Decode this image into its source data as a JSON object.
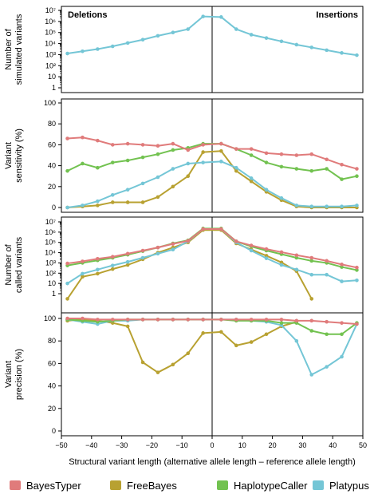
{
  "chart_data": {
    "type": "line",
    "x": [
      -48,
      -43,
      -38,
      -33,
      -28,
      -23,
      -18,
      -13,
      -8,
      -3,
      3,
      8,
      13,
      18,
      23,
      28,
      33,
      38,
      43,
      48
    ],
    "xlim": [
      -50,
      50
    ],
    "xticks": [
      -50,
      -40,
      -30,
      -20,
      -10,
      0,
      10,
      20,
      30,
      40,
      50
    ],
    "xlabel": "Structural variant length (alternative allele length – reference allele length)",
    "left_label": "Deletions",
    "right_label": "Insertions",
    "legend": [
      {
        "name": "BayesTyper",
        "color": "#e07b7b"
      },
      {
        "name": "FreeBayes",
        "color": "#b8a131"
      },
      {
        "name": "HaplotypeCaller",
        "color": "#72c250"
      },
      {
        "name": "Platypus",
        "color": "#74c6d6"
      }
    ],
    "panels": [
      {
        "id": "simulated",
        "ylabel": [
          "Number of",
          "simulated variants"
        ],
        "scale": "log",
        "ylim": [
          0,
          7
        ],
        "ytick_labels": [
          "1",
          "10",
          "10²",
          "10³",
          "10⁴",
          "10⁵",
          "10⁶",
          "10⁷"
        ],
        "show_corner_labels": true,
        "series": [
          {
            "key": "simulated",
            "color": "#74c6d6",
            "values": [
              3.1,
              3.3,
              3.5,
              3.75,
              4.05,
              4.35,
              4.7,
              5.0,
              5.3,
              6.45,
              6.4,
              5.3,
              4.8,
              4.5,
              4.2,
              3.9,
              3.65,
              3.4,
              3.15,
              2.95
            ]
          }
        ]
      },
      {
        "id": "sensitivity",
        "ylabel": [
          "Variant",
          "sensitivity (%)"
        ],
        "scale": "linear",
        "ylim": [
          0,
          100
        ],
        "yticks": [
          0,
          20,
          40,
          60,
          80,
          100
        ],
        "ytick_labels": [
          "0",
          "20",
          "40",
          "60",
          "80",
          "100"
        ],
        "series": [
          {
            "name": "BayesTyper",
            "values": [
              66,
              67,
              64,
              60,
              61,
              60,
              59,
              61,
              55,
              60,
              61,
              56,
              56,
              52,
              51,
              50,
              51,
              46,
              41,
              37
            ]
          },
          {
            "name": "FreeBayes",
            "values": [
              0,
              1,
              2,
              5,
              5,
              5,
              10,
              20,
              30,
              53,
              54,
              35,
              25,
              15,
              7,
              1,
              0,
              0,
              0,
              0
            ]
          },
          {
            "name": "HaplotypeCaller",
            "values": [
              35,
              42,
              38,
              43,
              45,
              48,
              51,
              55,
              57,
              61,
              61,
              56,
              50,
              43,
              39,
              37,
              35,
              37,
              27,
              30
            ]
          },
          {
            "name": "Platypus",
            "values": [
              0,
              2,
              6,
              12,
              17,
              23,
              29,
              37,
              42,
              43,
              44,
              38,
              28,
              17,
              9,
              2,
              1,
              1,
              1,
              2
            ]
          }
        ]
      },
      {
        "id": "called",
        "ylabel": [
          "Number of",
          "called variants"
        ],
        "scale": "log",
        "ylim": [
          0,
          7
        ],
        "ytick_labels": [
          "1",
          "10",
          "10²",
          "10³",
          "10⁴",
          "10⁵",
          "10⁶",
          "10⁷"
        ],
        "series": [
          {
            "name": "BayesTyper",
            "values": [
              2.95,
              3.15,
              3.4,
              3.6,
              3.9,
              4.2,
              4.5,
              4.85,
              5.15,
              6.3,
              6.3,
              5.1,
              4.7,
              4.35,
              4.05,
              3.75,
              3.5,
              3.2,
              2.85,
              2.55
            ]
          },
          {
            "name": "FreeBayes",
            "values": [
              -0.5,
              1.65,
              1.95,
              2.4,
              2.8,
              3.35,
              4.0,
              4.5,
              5.0,
              6.2,
              6.2,
              4.9,
              4.3,
              3.7,
              3.05,
              2.2,
              -0.5,
              null,
              null,
              null
            ]
          },
          {
            "name": "HaplotypeCaller",
            "values": [
              2.75,
              3.0,
              3.25,
              3.5,
              3.8,
              4.15,
              4.5,
              4.9,
              5.2,
              6.35,
              6.35,
              5.1,
              4.6,
              4.2,
              3.85,
              3.5,
              3.2,
              3.0,
              2.6,
              2.3
            ]
          },
          {
            "name": "Platypus",
            "values": [
              1.0,
              1.95,
              2.35,
              2.75,
              3.1,
              3.5,
              3.9,
              4.3,
              5.1,
              6.3,
              6.3,
              5.0,
              4.2,
              3.45,
              2.8,
              2.35,
              1.85,
              1.85,
              1.2,
              1.3
            ]
          }
        ]
      },
      {
        "id": "precision",
        "ylabel": [
          "Variant",
          "precision (%)"
        ],
        "scale": "linear",
        "ylim": [
          0,
          100
        ],
        "yticks": [
          0,
          20,
          40,
          60,
          80,
          100
        ],
        "ytick_labels": [
          "0",
          "20",
          "40",
          "60",
          "80",
          "100"
        ],
        "series": [
          {
            "name": "BayesTyper",
            "values": [
              100,
              100,
              99,
              99,
              99,
              99,
              99,
              99,
              99,
              99,
              99,
              99,
              99,
              99,
              99,
              98,
              98,
              97,
              96,
              95
            ]
          },
          {
            "name": "FreeBayes",
            "values": [
              98,
              99,
              98,
              96,
              93,
              61,
              52,
              59,
              69,
              87,
              88,
              76,
              79,
              86,
              93,
              97,
              null,
              null,
              null,
              null
            ]
          },
          {
            "name": "HaplotypeCaller",
            "values": [
              99,
              98,
              97,
              98,
              99,
              99,
              99,
              99,
              99,
              99,
              99,
              98,
              98,
              98,
              96,
              96,
              89,
              86,
              86,
              96
            ]
          },
          {
            "name": "Platypus",
            "values": [
              99,
              97,
              95,
              98,
              98,
              99,
              99,
              99,
              99,
              99,
              99,
              99,
              98,
              97,
              94,
              80,
              50,
              57,
              66,
              95
            ]
          }
        ]
      }
    ]
  }
}
